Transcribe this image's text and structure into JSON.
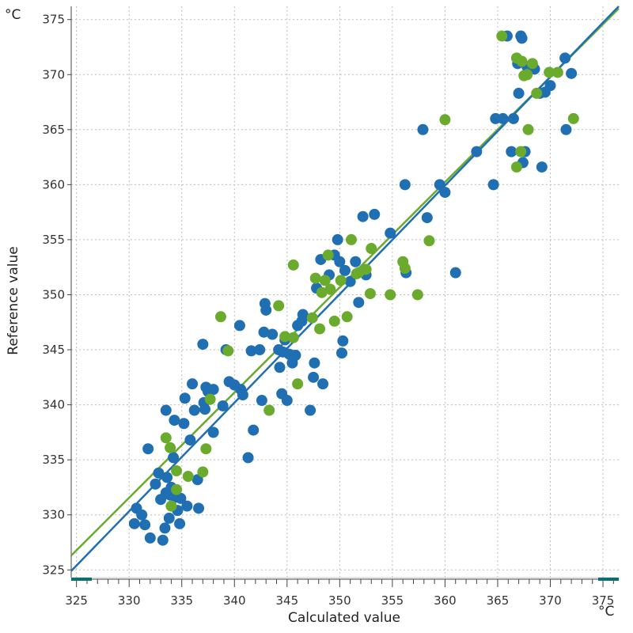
{
  "chart_data": {
    "type": "scatter",
    "title": "",
    "xlabel": "Calculated value",
    "ylabel": "Reference value",
    "x_unit": "°C",
    "y_unit": "°C",
    "xlim": [
      324.5,
      376.5
    ],
    "ylim": [
      324.3,
      376.2
    ],
    "x_ticks": [
      325,
      330,
      335,
      340,
      345,
      350,
      355,
      360,
      365,
      370,
      375
    ],
    "y_ticks": [
      325,
      330,
      335,
      340,
      345,
      350,
      355,
      360,
      365,
      370,
      375
    ],
    "grid": "dotted",
    "colors": {
      "series_blue": "#1f6fb2",
      "series_green": "#6aab2e",
      "axis": "#444444",
      "grid": "#bdbdbd",
      "scrollbar": "#0d6e6e"
    },
    "series": [
      {
        "color": "#1f6fb2",
        "fit_line": {
          "x": [
            324.5,
            376.5
          ],
          "y": [
            324.9,
            376.2
          ]
        },
        "points": [
          [
            330.5,
            329.2
          ],
          [
            330.7,
            330.6
          ],
          [
            331.2,
            330.0
          ],
          [
            331.5,
            329.1
          ],
          [
            331.8,
            336.0
          ],
          [
            332.0,
            327.9
          ],
          [
            332.5,
            332.8
          ],
          [
            332.8,
            333.8
          ],
          [
            333.0,
            331.4
          ],
          [
            333.2,
            327.7
          ],
          [
            333.4,
            328.8
          ],
          [
            333.5,
            339.5
          ],
          [
            333.5,
            332.0
          ],
          [
            333.6,
            333.4
          ],
          [
            333.8,
            329.7
          ],
          [
            333.9,
            331.8
          ],
          [
            334.0,
            332.5
          ],
          [
            334.2,
            335.2
          ],
          [
            334.3,
            338.6
          ],
          [
            334.4,
            331.6
          ],
          [
            334.6,
            330.4
          ],
          [
            334.8,
            329.2
          ],
          [
            334.9,
            331.5
          ],
          [
            335.2,
            338.3
          ],
          [
            335.3,
            340.6
          ],
          [
            335.5,
            330.8
          ],
          [
            335.8,
            336.8
          ],
          [
            336.0,
            341.9
          ],
          [
            336.2,
            339.5
          ],
          [
            336.5,
            333.2
          ],
          [
            336.6,
            330.6
          ],
          [
            337.0,
            345.5
          ],
          [
            337.1,
            340.2
          ],
          [
            337.2,
            339.6
          ],
          [
            337.3,
            341.6
          ],
          [
            337.5,
            341.2
          ],
          [
            338.0,
            337.5
          ],
          [
            338.0,
            341.4
          ],
          [
            338.9,
            339.9
          ],
          [
            339.2,
            345.0
          ],
          [
            339.5,
            342.1
          ],
          [
            340.0,
            341.8
          ],
          [
            340.5,
            347.2
          ],
          [
            340.6,
            341.4
          ],
          [
            340.8,
            340.9
          ],
          [
            341.3,
            335.2
          ],
          [
            341.6,
            344.9
          ],
          [
            341.8,
            337.7
          ],
          [
            342.4,
            345.0
          ],
          [
            342.6,
            340.4
          ],
          [
            342.8,
            346.6
          ],
          [
            342.9,
            349.2
          ],
          [
            343.0,
            348.6
          ],
          [
            343.6,
            346.4
          ],
          [
            344.2,
            345.0
          ],
          [
            344.3,
            343.4
          ],
          [
            344.5,
            341.0
          ],
          [
            344.6,
            344.8
          ],
          [
            344.8,
            345.9
          ],
          [
            345.0,
            340.4
          ],
          [
            345.2,
            344.6
          ],
          [
            345.5,
            343.8
          ],
          [
            345.8,
            344.5
          ],
          [
            346.0,
            347.2
          ],
          [
            346.4,
            347.6
          ],
          [
            346.5,
            348.2
          ],
          [
            347.2,
            339.5
          ],
          [
            347.5,
            342.5
          ],
          [
            347.6,
            343.8
          ],
          [
            347.8,
            350.6
          ],
          [
            348.2,
            353.2
          ],
          [
            348.4,
            341.9
          ],
          [
            349.0,
            351.8
          ],
          [
            349.5,
            353.6
          ],
          [
            349.8,
            355.0
          ],
          [
            350.0,
            353.0
          ],
          [
            350.2,
            344.7
          ],
          [
            350.3,
            345.8
          ],
          [
            350.5,
            352.2
          ],
          [
            351.0,
            351.2
          ],
          [
            351.5,
            353.0
          ],
          [
            351.8,
            349.3
          ],
          [
            352.2,
            357.1
          ],
          [
            352.5,
            351.8
          ],
          [
            353.3,
            357.3
          ],
          [
            354.8,
            355.6
          ],
          [
            356.2,
            360.0
          ],
          [
            356.3,
            352.0
          ],
          [
            357.9,
            365.0
          ],
          [
            358.3,
            357.0
          ],
          [
            359.5,
            360.0
          ],
          [
            360.0,
            359.3
          ],
          [
            361.0,
            352.0
          ],
          [
            363.0,
            363.0
          ],
          [
            364.6,
            360.0
          ],
          [
            364.8,
            366.0
          ],
          [
            365.5,
            366.0
          ],
          [
            365.9,
            373.5
          ],
          [
            366.3,
            363.0
          ],
          [
            366.5,
            366.0
          ],
          [
            366.9,
            371.0
          ],
          [
            367.0,
            368.3
          ],
          [
            367.2,
            373.5
          ],
          [
            367.3,
            373.3
          ],
          [
            367.4,
            362.0
          ],
          [
            367.6,
            363.0
          ],
          [
            367.8,
            370.7
          ],
          [
            368.5,
            370.5
          ],
          [
            369.0,
            368.3
          ],
          [
            369.2,
            361.6
          ],
          [
            369.5,
            368.4
          ],
          [
            370.0,
            369.0
          ],
          [
            371.4,
            371.5
          ],
          [
            371.5,
            365.0
          ],
          [
            372.0,
            370.1
          ]
        ]
      },
      {
        "color": "#6aab2e",
        "fit_line": {
          "x": [
            324.5,
            376.5
          ],
          "y": [
            326.3,
            376.0
          ]
        },
        "points": [
          [
            333.5,
            337.0
          ],
          [
            333.9,
            336.1
          ],
          [
            334.0,
            330.8
          ],
          [
            334.5,
            334.0
          ],
          [
            334.5,
            332.3
          ],
          [
            335.6,
            333.5
          ],
          [
            337.0,
            333.9
          ],
          [
            337.3,
            336.0
          ],
          [
            337.7,
            340.5
          ],
          [
            338.7,
            348.0
          ],
          [
            339.4,
            344.9
          ],
          [
            343.3,
            339.5
          ],
          [
            344.2,
            349.0
          ],
          [
            344.8,
            346.2
          ],
          [
            345.6,
            352.7
          ],
          [
            345.6,
            346.1
          ],
          [
            346.0,
            341.9
          ],
          [
            347.4,
            347.9
          ],
          [
            347.7,
            351.5
          ],
          [
            348.1,
            346.9
          ],
          [
            348.3,
            350.2
          ],
          [
            348.6,
            351.3
          ],
          [
            348.9,
            353.6
          ],
          [
            349.1,
            350.5
          ],
          [
            349.5,
            347.6
          ],
          [
            350.1,
            351.3
          ],
          [
            350.7,
            348.0
          ],
          [
            351.1,
            355.0
          ],
          [
            351.6,
            351.9
          ],
          [
            351.8,
            352.0
          ],
          [
            352.5,
            352.3
          ],
          [
            352.9,
            350.1
          ],
          [
            353.0,
            354.2
          ],
          [
            354.8,
            350.0
          ],
          [
            356.0,
            353.0
          ],
          [
            356.2,
            352.4
          ],
          [
            357.4,
            350.0
          ],
          [
            358.5,
            354.9
          ],
          [
            360.0,
            365.9
          ],
          [
            365.4,
            373.5
          ],
          [
            366.8,
            371.5
          ],
          [
            366.8,
            361.6
          ],
          [
            367.2,
            363.0
          ],
          [
            367.3,
            371.2
          ],
          [
            367.5,
            369.9
          ],
          [
            367.8,
            370.0
          ],
          [
            367.9,
            365.0
          ],
          [
            368.3,
            371.0
          ],
          [
            368.7,
            368.3
          ],
          [
            369.9,
            370.2
          ],
          [
            370.7,
            370.2
          ],
          [
            372.2,
            366.0
          ]
        ]
      }
    ]
  }
}
